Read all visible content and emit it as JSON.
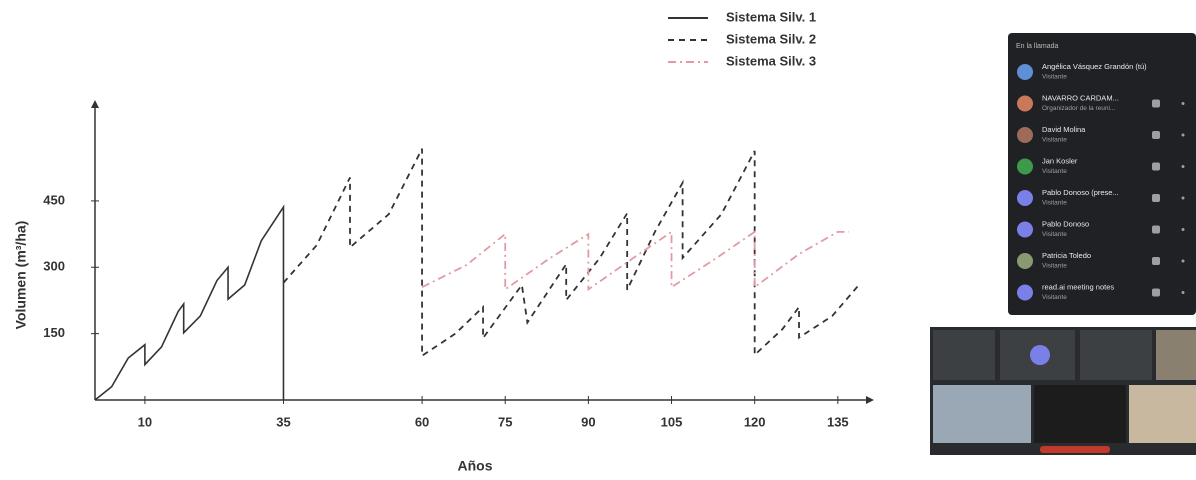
{
  "chart_data": {
    "type": "line",
    "xlabel": "Años",
    "ylabel": "Volumen (m³/ha)",
    "xlim": [
      1,
      139
    ],
    "ylim": [
      0,
      660
    ],
    "xticks": [
      10,
      35,
      60,
      75,
      90,
      105,
      120,
      135
    ],
    "yticks": [
      150,
      300,
      450
    ],
    "legend": "top-right",
    "series": [
      {
        "name": "Sistema Silv. 1",
        "color": "#333333",
        "style": "solid",
        "x": [
          1,
          4,
          7,
          10,
          10,
          13,
          16,
          17,
          17,
          20,
          23,
          25,
          25,
          28,
          31,
          35,
          35
        ],
        "values": [
          0,
          30,
          95,
          125,
          80,
          120,
          200,
          217,
          152,
          190,
          270,
          300,
          228,
          260,
          360,
          436,
          0
        ]
      },
      {
        "name": "Sistema Silv. 2",
        "color": "#333333",
        "style": "dashed",
        "x": [
          35,
          41,
          47,
          47,
          54,
          60,
          60,
          66,
          71,
          71,
          78,
          79,
          86,
          86,
          92,
          97,
          97,
          102,
          107,
          107,
          114,
          120,
          120,
          125,
          128,
          128,
          134,
          139
        ],
        "values": [
          265,
          350,
          503,
          345,
          420,
          568,
          100,
          150,
          210,
          140,
          260,
          175,
          307,
          226,
          320,
          422,
          249,
          380,
          491,
          321,
          420,
          563,
          102,
          160,
          210,
          141,
          190,
          263
        ]
      },
      {
        "name": "Sistema Silv. 3",
        "color": "#e39aa3",
        "style": "dashdot",
        "x": [
          60,
          68,
          75,
          75,
          83,
          90,
          90,
          98,
          105,
          105,
          113,
          120,
          120,
          128,
          135,
          137
        ],
        "values": [
          255,
          305,
          375,
          250,
          320,
          375,
          250,
          320,
          380,
          255,
          320,
          380,
          255,
          330,
          380,
          380
        ]
      }
    ]
  },
  "panel": {
    "title": "En la llamada",
    "participants": [
      {
        "name": "Angélica Vásquez Grandón (tú)",
        "role": "Visitante"
      },
      {
        "name": "NAVARRO CARDAM...",
        "role": "Organizador de la reuni..."
      },
      {
        "name": "David Molina",
        "role": "Visitante"
      },
      {
        "name": "Jan Kosler",
        "role": "Visitante"
      },
      {
        "name": "Pablo Donoso (prese...",
        "role": "Visitante"
      },
      {
        "name": "Pablo Donoso",
        "role": "Visitante"
      },
      {
        "name": "Patricia Toledo",
        "role": "Visitante"
      },
      {
        "name": "read.ai meeting notes",
        "role": "Visitante"
      }
    ]
  }
}
